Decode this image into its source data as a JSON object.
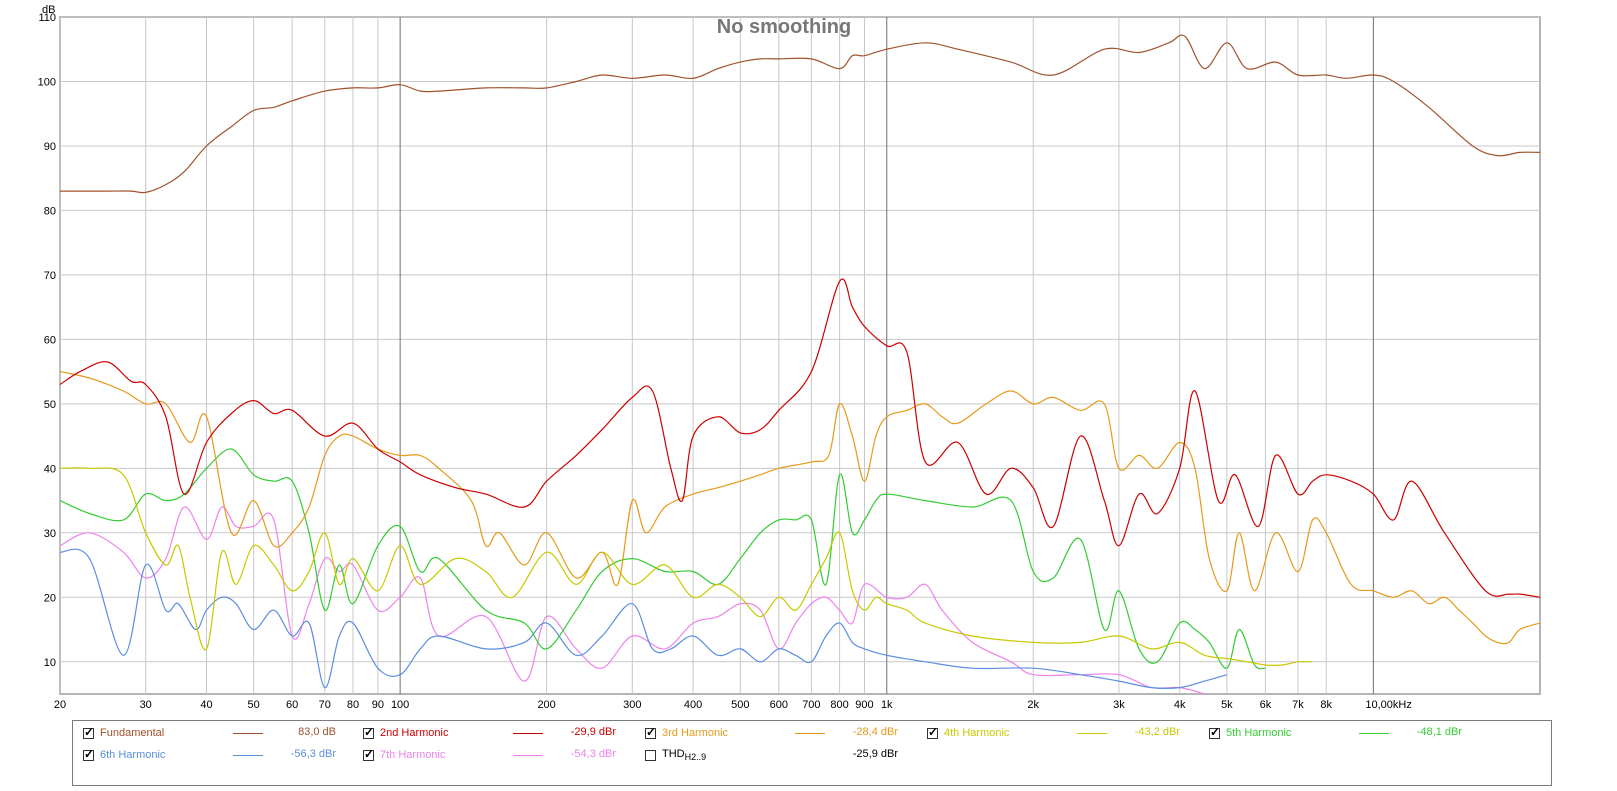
{
  "chart_data": {
    "type": "line",
    "title": "No smoothing",
    "ylabel": "dB",
    "xscale": "log",
    "xlim": [
      20,
      22000
    ],
    "ylim": [
      5,
      110
    ],
    "yticks": [
      10,
      20,
      30,
      40,
      50,
      60,
      70,
      80,
      90,
      100,
      110
    ],
    "xticks": [
      {
        "v": 20,
        "l": "20"
      },
      {
        "v": 30,
        "l": "30"
      },
      {
        "v": 40,
        "l": "40"
      },
      {
        "v": 50,
        "l": "50"
      },
      {
        "v": 60,
        "l": "60"
      },
      {
        "v": 70,
        "l": "70"
      },
      {
        "v": 80,
        "l": "80"
      },
      {
        "v": 90,
        "l": "90"
      },
      {
        "v": 100,
        "l": "100"
      },
      {
        "v": 200,
        "l": "200"
      },
      {
        "v": 300,
        "l": "300"
      },
      {
        "v": 400,
        "l": "400"
      },
      {
        "v": 500,
        "l": "500"
      },
      {
        "v": 600,
        "l": "600"
      },
      {
        "v": 700,
        "l": "700"
      },
      {
        "v": 800,
        "l": "800"
      },
      {
        "v": 900,
        "l": "900"
      },
      {
        "v": 1000,
        "l": "1k"
      },
      {
        "v": 2000,
        "l": "2k"
      },
      {
        "v": 3000,
        "l": "3k"
      },
      {
        "v": 4000,
        "l": "4k"
      },
      {
        "v": 5000,
        "l": "5k"
      },
      {
        "v": 6000,
        "l": "6k"
      },
      {
        "v": 7000,
        "l": "7k"
      },
      {
        "v": 8000,
        "l": "8k"
      },
      {
        "v": 10000,
        "l": "10,00kHz"
      }
    ],
    "series": [
      {
        "name": "Fundamental",
        "value": "83,0 dB",
        "color": "#a0522d",
        "checked": true,
        "x": [
          20,
          22,
          25,
          28,
          30,
          33,
          36,
          40,
          45,
          50,
          55,
          60,
          70,
          80,
          90,
          100,
          110,
          120,
          150,
          180,
          200,
          230,
          260,
          300,
          350,
          400,
          450,
          500,
          550,
          600,
          700,
          800,
          850,
          900,
          1000,
          1200,
          1400,
          1800,
          2200,
          2800,
          3300,
          3800,
          4100,
          4500,
          5000,
          5500,
          6300,
          7000,
          8000,
          8800,
          10000,
          11000,
          13000,
          16000,
          18000,
          20000,
          22000
        ],
        "y": [
          83,
          83,
          83,
          83,
          82.8,
          84,
          86,
          90,
          93,
          95.5,
          96,
          97,
          98.5,
          99,
          99,
          99.5,
          98.5,
          98.5,
          99,
          99,
          99,
          100,
          101,
          100.5,
          101,
          100.5,
          102,
          103,
          103.5,
          103.5,
          103.5,
          102,
          104,
          104,
          105,
          106,
          105,
          103,
          101,
          105,
          104.5,
          106,
          107,
          102,
          106,
          102,
          103,
          101,
          101,
          100.5,
          101,
          100,
          96,
          90,
          88.5,
          89,
          89
        ]
      },
      {
        "name": "2nd Harmonic",
        "value": "-29,9 dBr",
        "color": "#cc0000",
        "checked": true,
        "x": [
          20,
          22,
          25,
          28,
          30,
          33,
          36,
          40,
          45,
          50,
          55,
          60,
          70,
          80,
          90,
          100,
          110,
          130,
          150,
          180,
          200,
          230,
          260,
          300,
          330,
          360,
          380,
          400,
          450,
          500,
          550,
          600,
          700,
          800,
          850,
          900,
          1000,
          1100,
          1200,
          1400,
          1600,
          1800,
          2000,
          2200,
          2500,
          2800,
          3000,
          3300,
          3600,
          4000,
          4300,
          4800,
          5200,
          5800,
          6300,
          7000,
          7500,
          8000,
          9000,
          10000,
          11000,
          12000,
          14000,
          17000,
          19000,
          20000,
          22000
        ],
        "y": [
          53,
          55,
          56.5,
          53.5,
          53,
          48,
          36,
          44,
          48.5,
          50.5,
          48.5,
          49,
          45,
          47,
          43,
          41,
          39,
          37,
          36,
          34,
          38,
          42,
          46,
          51,
          52,
          40,
          35,
          45,
          48,
          45.5,
          46,
          49,
          55,
          69,
          65,
          62,
          59,
          58,
          41,
          44,
          36,
          40,
          37,
          31,
          45,
          35,
          28,
          36,
          33,
          40,
          52,
          35,
          39,
          31,
          42,
          36,
          38,
          39,
          38,
          36,
          32,
          38,
          30,
          21,
          20.5,
          20.5,
          20
        ]
      },
      {
        "name": "3rd Harmonic",
        "value": "-28,4 dBr",
        "color": "#e69a1a",
        "checked": true,
        "x": [
          20,
          23,
          27,
          30,
          33,
          37,
          40,
          45,
          50,
          55,
          60,
          65,
          70,
          75,
          80,
          90,
          100,
          110,
          120,
          140,
          150,
          160,
          180,
          200,
          230,
          260,
          280,
          300,
          320,
          350,
          400,
          450,
          500,
          550,
          600,
          700,
          760,
          800,
          850,
          900,
          950,
          1000,
          1100,
          1200,
          1300,
          1400,
          1600,
          1800,
          2000,
          2200,
          2500,
          2800,
          3000,
          3300,
          3600,
          4000,
          4300,
          4600,
          5000,
          5300,
          5700,
          6300,
          7000,
          7500,
          8000,
          9000,
          10000,
          11000,
          12000,
          13000,
          14000,
          15000,
          16000,
          17000,
          18000,
          19000,
          20000,
          22000
        ],
        "y": [
          55,
          54,
          52,
          50,
          50,
          44,
          48,
          30,
          35,
          28,
          30,
          34,
          42,
          45,
          45,
          43,
          42,
          42,
          40,
          35,
          28,
          30,
          25,
          30,
          23,
          27,
          22,
          35,
          30,
          34,
          36,
          37,
          38,
          39,
          40,
          41,
          42,
          50,
          45,
          38,
          45,
          48,
          49,
          50,
          48,
          47,
          50,
          52,
          50,
          51,
          49,
          50,
          40,
          42,
          40,
          44,
          40,
          26,
          21,
          30,
          21,
          30,
          24,
          32,
          30,
          22,
          21,
          20,
          21,
          19,
          20,
          18,
          16,
          14,
          13,
          13,
          15,
          16
        ]
      },
      {
        "name": "4th Harmonic",
        "value": "-43,2 dBr",
        "color": "#c8c800",
        "checked": true,
        "x": [
          20,
          23,
          27,
          30,
          33,
          35,
          37,
          40,
          43,
          46,
          50,
          55,
          60,
          65,
          70,
          75,
          80,
          90,
          100,
          110,
          130,
          150,
          170,
          200,
          230,
          260,
          300,
          350,
          400,
          450,
          500,
          550,
          600,
          650,
          700,
          750,
          800,
          850,
          900,
          950,
          1000,
          1100,
          1200,
          1500,
          2000,
          2500,
          3000,
          3500,
          4000,
          4500,
          5000,
          5500,
          6000,
          6500,
          7000,
          7500
        ],
        "y": [
          40,
          40,
          39,
          30,
          25,
          28,
          20,
          12,
          27,
          22,
          28,
          25,
          21,
          24,
          30,
          22,
          26,
          21,
          28,
          22,
          26,
          24,
          20,
          27,
          22,
          27,
          22,
          25,
          20,
          22,
          20,
          17,
          20,
          18,
          22,
          26,
          30,
          21,
          18,
          20,
          19,
          18,
          16,
          14,
          13,
          13,
          14,
          12,
          13,
          11,
          10.5,
          10,
          9.5,
          9.5,
          10,
          10
        ]
      },
      {
        "name": "5th Harmonic",
        "value": "-48,1 dBr",
        "color": "#33cc33",
        "checked": true,
        "x": [
          20,
          23,
          27,
          30,
          33,
          36,
          40,
          45,
          50,
          55,
          60,
          65,
          70,
          75,
          80,
          90,
          100,
          110,
          120,
          150,
          180,
          200,
          230,
          260,
          300,
          350,
          400,
          450,
          500,
          550,
          600,
          650,
          700,
          750,
          800,
          850,
          900,
          950,
          1000,
          1200,
          1500,
          1800,
          2000,
          2200,
          2500,
          2800,
          3000,
          3300,
          3600,
          4000,
          4300,
          4600,
          5000,
          5300,
          5700,
          6000
        ],
        "y": [
          35,
          33,
          32,
          36,
          35,
          36,
          40,
          43,
          39,
          38,
          38,
          30,
          18,
          25,
          19,
          28,
          31,
          24,
          26,
          18,
          16,
          12,
          18,
          24,
          26,
          24,
          24,
          22,
          26,
          30,
          32,
          32,
          32,
          22,
          39,
          30,
          32,
          35,
          36,
          35,
          34,
          35,
          24,
          23,
          29,
          15,
          21,
          12,
          10,
          16,
          15,
          13,
          9,
          15,
          9.5,
          9
        ]
      },
      {
        "name": "6th Harmonic",
        "value": "-56,3 dBr",
        "color": "#5b8ee0",
        "checked": true,
        "x": [
          20,
          23,
          27,
          30,
          33,
          35,
          38,
          40,
          43,
          46,
          50,
          55,
          60,
          65,
          70,
          75,
          80,
          90,
          100,
          110,
          120,
          150,
          180,
          200,
          230,
          260,
          300,
          330,
          360,
          400,
          450,
          500,
          550,
          600,
          650,
          700,
          750,
          800,
          850,
          900,
          1000,
          1200,
          1500,
          2000,
          2500,
          3000,
          3500,
          4000,
          4500,
          5000
        ],
        "y": [
          27,
          26,
          11,
          25,
          18,
          19,
          15,
          18,
          20,
          19,
          15,
          18,
          14,
          16,
          6,
          14,
          16,
          9,
          8,
          12,
          14,
          12,
          13,
          16,
          11,
          14,
          19,
          12,
          12,
          14,
          11,
          12,
          10,
          12,
          11,
          10,
          14,
          16,
          13,
          12,
          11,
          10,
          9,
          9,
          8,
          7,
          6,
          6,
          7,
          8
        ]
      },
      {
        "name": "7th Harmonic",
        "value": "-54,3 dBr",
        "color": "#ee82ee",
        "checked": true,
        "x": [
          20,
          23,
          27,
          30,
          33,
          36,
          40,
          43,
          46,
          50,
          55,
          60,
          65,
          70,
          75,
          80,
          90,
          100,
          110,
          120,
          150,
          180,
          200,
          230,
          260,
          300,
          350,
          400,
          450,
          500,
          550,
          600,
          650,
          700,
          750,
          800,
          850,
          900,
          1000,
          1100,
          1200,
          1300,
          1500,
          1800,
          2000,
          2500,
          3000,
          3500,
          4000,
          4500
        ],
        "y": [
          28,
          30,
          27,
          23,
          26,
          34,
          29,
          34,
          31,
          31,
          32,
          14,
          19,
          26,
          24,
          25,
          18,
          20,
          23,
          14,
          17,
          7,
          17,
          12,
          9,
          14,
          12,
          16,
          17,
          19,
          18,
          12,
          16,
          19,
          20,
          18,
          16,
          22,
          20,
          20,
          22,
          18,
          13,
          10,
          8,
          8,
          8,
          6,
          6,
          5
        ]
      },
      {
        "name": "THD H2..9",
        "value": "-25,9 dBr",
        "color": "#000000",
        "checked": false,
        "x": [],
        "y": []
      }
    ]
  }
}
